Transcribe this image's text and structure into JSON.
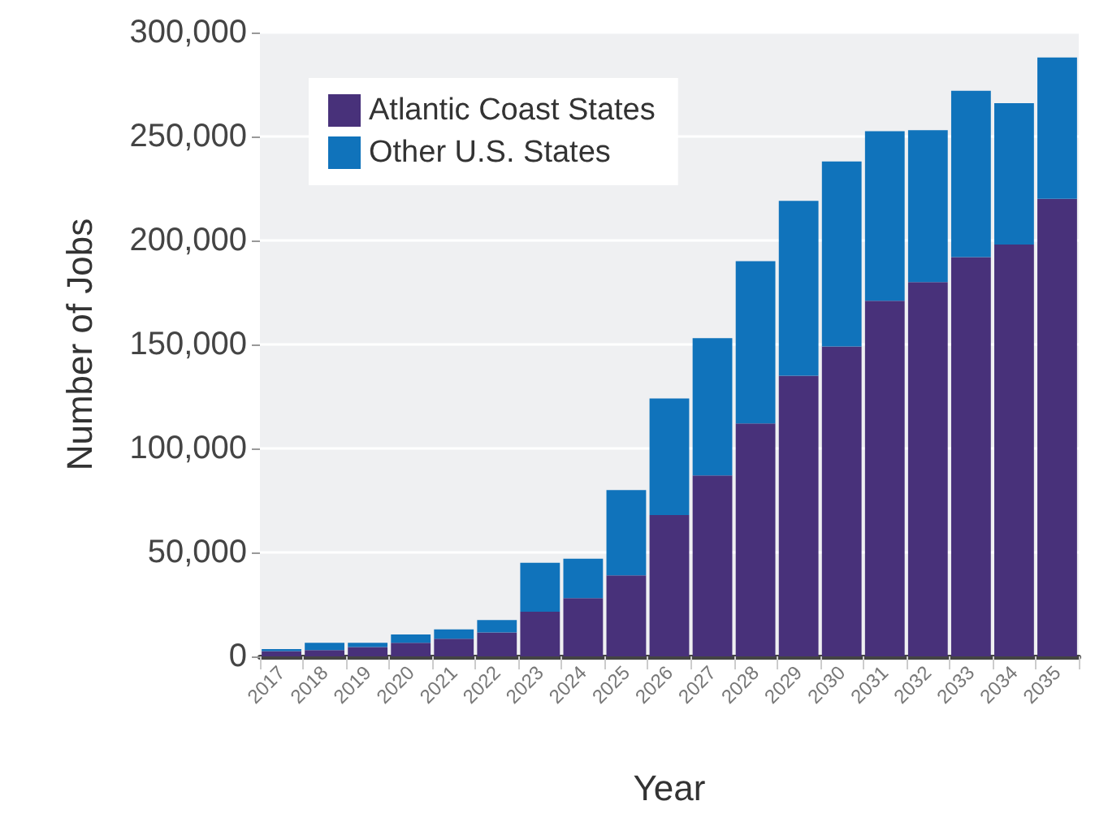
{
  "chart_data": {
    "type": "bar",
    "stacked": true,
    "xlabel": "Year",
    "ylabel": "Number of Jobs",
    "categories": [
      "2017",
      "2018",
      "2019",
      "2020",
      "2021",
      "2022",
      "2023",
      "2024",
      "2025",
      "2026",
      "2027",
      "2028",
      "2029",
      "2030",
      "2031",
      "2032",
      "2033",
      "2034",
      "2035"
    ],
    "series": [
      {
        "name": "Atlantic Coast States",
        "color": "#48317a",
        "values": [
          2500,
          3000,
          4500,
          6500,
          8500,
          11500,
          21500,
          28000,
          39000,
          68000,
          87000,
          112000,
          135000,
          149000,
          171000,
          180000,
          192000,
          198000,
          220000
        ]
      },
      {
        "name": "Other U.S. States",
        "color": "#1073bb",
        "values": [
          1000,
          3500,
          2000,
          4000,
          4500,
          6000,
          23500,
          19000,
          41000,
          56000,
          66000,
          78000,
          84000,
          89000,
          81500,
          73000,
          80000,
          68000,
          68000
        ]
      }
    ],
    "ylim": [
      0,
      300000
    ],
    "yticks": [
      0,
      {
        "value": 50000,
        "label": "50,000"
      },
      {
        "value": 100000,
        "label": "100,000"
      },
      {
        "value": 150000,
        "label": "150,000"
      },
      {
        "value": 200000,
        "label": "200,000"
      },
      {
        "value": 250000,
        "label": "250,000"
      },
      {
        "value": 300000,
        "label": "300,000"
      }
    ],
    "grid": "y",
    "legend": "top left"
  }
}
